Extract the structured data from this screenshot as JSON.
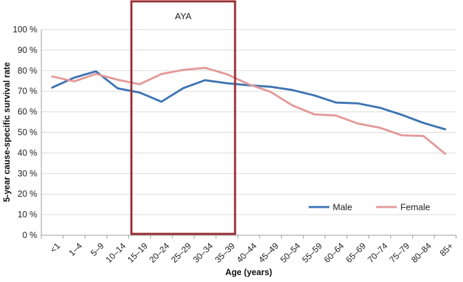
{
  "chart_data": {
    "type": "line",
    "title": "",
    "xlabel": "Age (years)",
    "ylabel": "5-year cause-specific survival rate",
    "ylim": [
      0,
      100
    ],
    "ytick_values": [
      0,
      10,
      20,
      30,
      40,
      50,
      60,
      70,
      80,
      90,
      100
    ],
    "ytick_labels": [
      "0 %",
      "10 %",
      "20 %",
      "30 %",
      "40 %",
      "50 %",
      "60 %",
      "70 %",
      "80 %",
      "90 %",
      "100 %"
    ],
    "categories": [
      "<1",
      "1–4",
      "5–9",
      "10–14",
      "15–19",
      "20–24",
      "25–29",
      "30–34",
      "35–39",
      "40–44",
      "45–49",
      "50–54",
      "55–59",
      "60–64",
      "65–69",
      "70–74",
      "75–79",
      "80–84",
      "85+"
    ],
    "grid": true,
    "legend_position": "bottom-right",
    "series": [
      {
        "name": "Male",
        "color": "#3f74b3",
        "values": [
          71.8,
          76.6,
          79.7,
          71.4,
          69.4,
          64.9,
          71.5,
          75.4,
          73.9,
          72.9,
          72.2,
          70.6,
          68.0,
          64.5,
          64.1,
          62.0,
          58.6,
          54.6,
          51.5
        ]
      },
      {
        "name": "Female",
        "color": "#e39a9a",
        "values": [
          77.2,
          74.8,
          78.4,
          75.6,
          73.4,
          78.4,
          80.4,
          81.4,
          78.3,
          73.4,
          69.7,
          63.1,
          58.8,
          58.2,
          54.3,
          52.3,
          48.6,
          48.3,
          39.6
        ]
      }
    ],
    "annotations": [
      {
        "label": "AYA",
        "category_start": "15–19",
        "category_end": "35–39",
        "color": "#9b2d33"
      }
    ]
  }
}
